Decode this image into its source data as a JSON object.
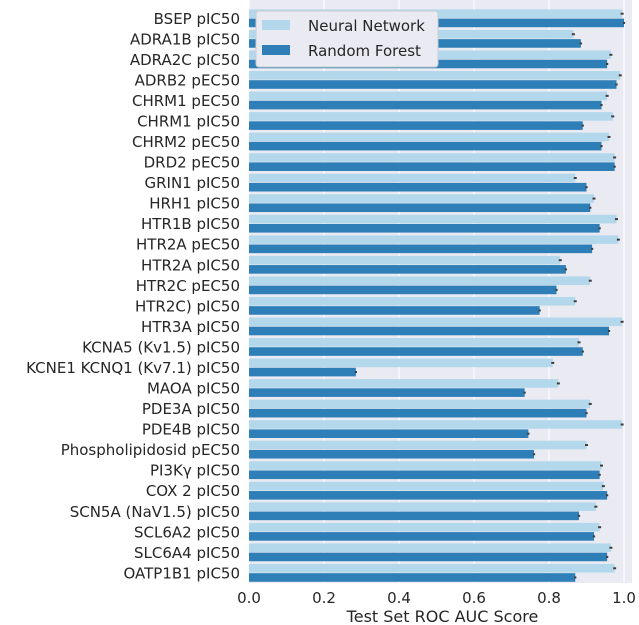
{
  "chart_data": {
    "type": "bar",
    "orientation": "horizontal",
    "xlabel": "Test Set ROC AUC Score",
    "ylabel": "",
    "xlim": [
      0.0,
      1.0
    ],
    "xticks": [
      "0.0",
      "0.2",
      "0.4",
      "0.6",
      "0.8",
      "1.0"
    ],
    "grid": true,
    "legend_position": "top-center",
    "background_color": "#eaeaf2",
    "categories": [
      "BSEP pIC50",
      "ADRA1B pIC50",
      "ADRA2C pIC50",
      "ADRB2 pEC50",
      "CHRM1 pEC50",
      "CHRM1 pIC50",
      "CHRM2 pEC50",
      "DRD2 pEC50",
      "GRIN1 pIC50",
      "HRH1 pIC50",
      "HTR1B pIC50",
      "HTR2A pEC50",
      "HTR2A pIC50",
      "HTR2C  pEC50",
      "HTR2C) pIC50",
      "HTR3A pIC50",
      "KCNA5 (Kv1.5) pIC50",
      "KCNE1 KCNQ1 (Kv7.1)  pIC50",
      "MAOA pIC50",
      "PDE3A pIC50",
      "PDE4B pIC50",
      "Phospholipidosid pEC50",
      "PI3Kγ pIC50",
      "COX 2 pIC50",
      "SCN5A (NaV1.5) pIC50",
      "SCL6A2 pIC50",
      "SLC6A4 pIC50",
      "OATP1B1 pIC50"
    ],
    "series": [
      {
        "name": "Neural Network",
        "color": "#b3d8ec",
        "values": [
          0.995,
          0.865,
          0.965,
          0.99,
          0.955,
          0.97,
          0.96,
          0.975,
          0.87,
          0.92,
          0.98,
          0.985,
          0.83,
          0.91,
          0.87,
          0.995,
          0.88,
          0.81,
          0.825,
          0.91,
          0.995,
          0.9,
          0.94,
          0.945,
          0.925,
          0.935,
          0.965,
          0.975
        ],
        "errors": [
          0.004,
          0.004,
          0.004,
          0.004,
          0.004,
          0.004,
          0.004,
          0.004,
          0.004,
          0.004,
          0.004,
          0.004,
          0.004,
          0.004,
          0.004,
          0.004,
          0.004,
          0.004,
          0.004,
          0.004,
          0.004,
          0.004,
          0.004,
          0.004,
          0.004,
          0.004,
          0.004,
          0.004
        ]
      },
      {
        "name": "Random Forest",
        "color": "#2e7eb7",
        "values": [
          1.0,
          0.885,
          0.955,
          0.98,
          0.94,
          0.89,
          0.94,
          0.975,
          0.9,
          0.91,
          0.935,
          0.915,
          0.845,
          0.82,
          0.775,
          0.96,
          0.89,
          0.285,
          0.735,
          0.9,
          0.745,
          0.76,
          0.935,
          0.955,
          0.88,
          0.92,
          0.955,
          0.87
        ]
      }
    ]
  }
}
